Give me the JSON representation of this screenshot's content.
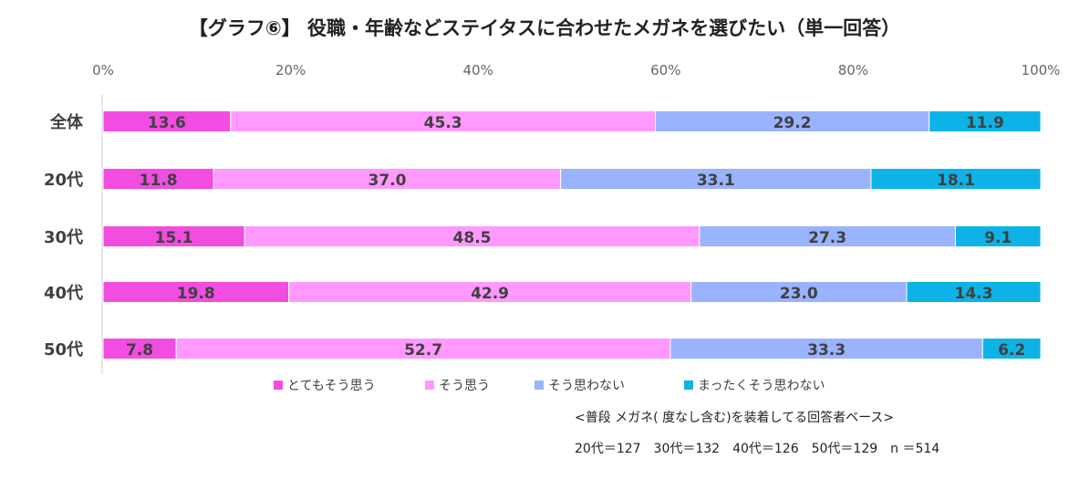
{
  "chart_data": {
    "type": "bar",
    "orientation": "horizontal",
    "stacked": true,
    "title": "【グラフ⑥】 役職・年齢などステイタスに合わせたメガネを選びたい（単一回答）",
    "categories": [
      "全体",
      "20代",
      "30代",
      "40代",
      "50代"
    ],
    "series": [
      {
        "name": "とてもそう思う",
        "color": "#f24ce0",
        "values": [
          13.6,
          11.8,
          15.1,
          19.8,
          7.8
        ]
      },
      {
        "name": "そう思う",
        "color": "#ff99ff",
        "values": [
          45.3,
          37.0,
          48.5,
          42.9,
          52.7
        ]
      },
      {
        "name": "そう思わない",
        "color": "#99b3ff",
        "values": [
          29.2,
          33.1,
          27.3,
          23.0,
          33.3
        ]
      },
      {
        "name": "まったくそう思わない",
        "color": "#0db3e6",
        "values": [
          11.9,
          18.1,
          9.1,
          14.3,
          6.2
        ]
      }
    ],
    "xlim": [
      0,
      100
    ],
    "xticks": [
      0,
      20,
      40,
      60,
      80,
      100
    ],
    "xtick_labels": [
      "0%",
      "20%",
      "40%",
      "60%",
      "80%",
      "100%"
    ],
    "legend_position": "bottom",
    "grid": false,
    "notes": [
      "<普段 メガネ( 度なし含む)を装着してる回答者ベース>",
      "20代＝127　30代＝132　40代＝126　50代＝129　n ＝514"
    ]
  }
}
